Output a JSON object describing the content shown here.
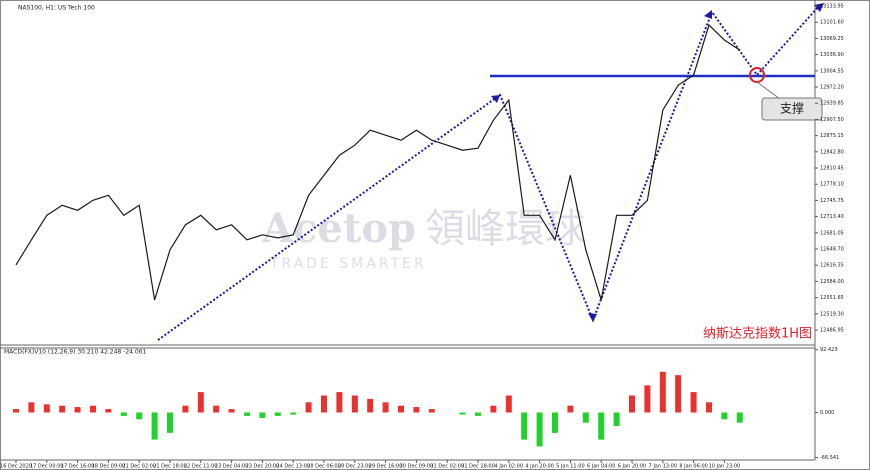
{
  "chart_data": [
    {
      "type": "line",
      "title": "NAS100, H1: US Tech 100",
      "color": "#1a1a1a",
      "categories": [
        "16 Dec 2020",
        null,
        "17 Dec 00:00",
        null,
        "17 Dec 16:00",
        null,
        "18 Dec 09:00",
        null,
        "21 Dec 02:00",
        null,
        "21 Dec 18:00",
        null,
        "22 Dec 11:00",
        null,
        "23 Dec 04:00",
        null,
        "23 Dec 20:00",
        null,
        "24 Dec 13:00",
        null,
        "28 Dec 06:00",
        null,
        "28 Dec 23:00",
        null,
        "29 Dec 16:00",
        null,
        "30 Dec 09:00",
        null,
        "31 Dec 02:00",
        null,
        "31 Dec 18:00",
        null,
        "4 Jan 02:00",
        null,
        "4 Jan 20:00",
        null,
        "5 Jan 11:00",
        null,
        "6 Jan 04:00",
        null,
        "6 Jan 20:00",
        null,
        "7 Jan 13:00",
        null,
        "8 Jan 06:00",
        null,
        "10 Jan 23:00",
        null
      ],
      "values": [
        12617,
        12667,
        12716,
        12736,
        12726,
        12746,
        12756,
        12716,
        12736,
        12547,
        12647,
        12697,
        12716,
        12687,
        12697,
        12667,
        12677,
        12671,
        12677,
        12756,
        12796,
        12836,
        12856,
        12886,
        12876,
        12866,
        12886,
        12866,
        12856,
        12846,
        12850,
        12906,
        12946,
        12716,
        12716,
        12667,
        12796,
        12647,
        12547,
        12716,
        12716,
        12746,
        12926,
        12976,
        12996,
        13096,
        13066,
        13046
      ],
      "ylim": [
        12457,
        13146
      ],
      "yticks": [
        13133.95,
        {
          "value": 13101.6,
          "label": "13101.60"
        },
        13069.25,
        {
          "value": 13036.9,
          "label": "13036.90"
        },
        13004.55,
        {
          "value": 12972.2,
          "label": "12972.20"
        },
        12939.85,
        {
          "value": 12907.5,
          "label": "12907.50"
        },
        12875.15,
        {
          "value": 12842.8,
          "label": "12842.80"
        },
        12810.45,
        {
          "value": 12778.1,
          "label": "12778.10"
        },
        12745.75,
        {
          "value": 12713.4,
          "label": "12713.40"
        },
        12681.05,
        {
          "value": 12648.7,
          "label": "12648.70"
        },
        12616.35,
        {
          "value": 12584,
          "label": "12584.00"
        },
        12551.65,
        {
          "value": 12519.3,
          "label": "12519.30"
        },
        12486.95
      ],
      "annotations": [
        "支撑",
        "纳斯达克指数1H图"
      ],
      "watermark": [
        "Acetop",
        "領峰環球",
        "TRADE SMARTER"
      ]
    },
    {
      "type": "bar",
      "title": "MACD(FX)V10 (12,26,9) 30.210 42.248 -24.061",
      "up_color": "#e8322e",
      "down_color": "#22d12a",
      "values": [
        5,
        15,
        12,
        10,
        8,
        10,
        5,
        -5,
        -10,
        -40,
        -30,
        10,
        30,
        10,
        5,
        -5,
        -8,
        -5,
        -3,
        15,
        25,
        30,
        25,
        20,
        15,
        10,
        8,
        5,
        0,
        -3,
        -5,
        10,
        25,
        -40,
        -50,
        -30,
        10,
        -15,
        -40,
        -20,
        25,
        40,
        60,
        55,
        30,
        15,
        -10,
        -15
      ],
      "ylim": [
        -70,
        95
      ],
      "yticks": [
        92.423,
        {
          "value": 0,
          "label": "0.000"
        },
        -66.541
      ]
    }
  ]
}
